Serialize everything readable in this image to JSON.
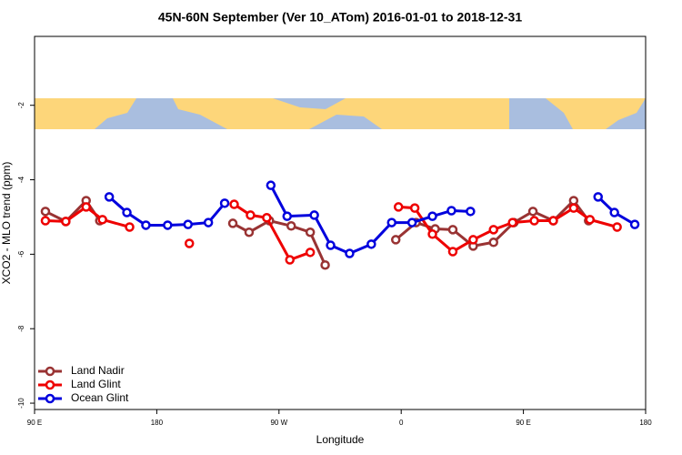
{
  "chart_data": {
    "type": "line",
    "title": "45N-60N September (Ver 10_ATom)   2016-01-01 to 2018-12-31",
    "x_label": "Longitude",
    "y_label": "XCO2 - MLO trend (ppm)",
    "xlim": [
      90,
      540
    ],
    "ylim": [
      -10.17,
      -0.15
    ],
    "xticks": [
      {
        "value": 90,
        "label": "90 E"
      },
      {
        "value": 180,
        "label": "180"
      },
      {
        "value": 270,
        "label": "90 W"
      },
      {
        "value": 360,
        "label": "0"
      },
      {
        "value": 450,
        "label": "90 E"
      },
      {
        "value": 540,
        "label": "180"
      }
    ],
    "yticks": [
      -10,
      -8,
      -6,
      -4,
      -2
    ],
    "legend": "bottom-left",
    "series": [
      {
        "name": "Land Nadir",
        "color": "#993333",
        "x": [
          98,
          113,
          128,
          138,
          null,
          236,
          248,
          263,
          279,
          293,
          304,
          null,
          356,
          371,
          385,
          398,
          413,
          428,
          443,
          457,
          472,
          487,
          498
        ],
        "values": [
          -4.85,
          -5.12,
          -4.56,
          -5.1,
          null,
          -5.17,
          -5.41,
          -5.1,
          -5.24,
          -5.41,
          -6.29,
          null,
          -5.61,
          -5.15,
          -5.32,
          -5.34,
          -5.78,
          -5.68,
          -5.15,
          -4.85,
          -5.1,
          -4.56,
          -5.1
        ]
      },
      {
        "name": "Land Glint",
        "color": "#ee0000",
        "x": [
          98,
          113,
          128,
          140,
          160,
          null,
          204,
          null,
          237,
          249,
          261,
          278,
          293,
          null,
          358,
          370,
          383,
          398,
          413,
          428,
          442,
          458,
          472,
          487,
          499,
          519
        ],
        "values": [
          -5.1,
          -5.12,
          -4.73,
          -5.07,
          -5.27,
          null,
          -5.71,
          null,
          -4.66,
          -4.95,
          -5.02,
          -6.15,
          -5.95,
          null,
          -4.73,
          -4.76,
          -5.46,
          -5.93,
          -5.61,
          -5.34,
          -5.15,
          -5.1,
          -5.1,
          -4.76,
          -5.07,
          -5.27
        ]
      },
      {
        "name": "Ocean Glint",
        "color": "#0000dd",
        "x": [
          145,
          158,
          172,
          188,
          203,
          218,
          230,
          null,
          264,
          276,
          296,
          308,
          322,
          338,
          353,
          368,
          383,
          397,
          411,
          null,
          505,
          517,
          532
        ],
        "values": [
          -4.46,
          -4.88,
          -5.22,
          -5.22,
          -5.2,
          -5.15,
          -4.63,
          null,
          -4.15,
          -4.98,
          -4.95,
          -5.76,
          -5.98,
          -5.73,
          -5.15,
          -5.15,
          -4.98,
          -4.83,
          -4.85,
          null,
          -4.46,
          -4.88,
          -5.2
        ]
      }
    ]
  }
}
